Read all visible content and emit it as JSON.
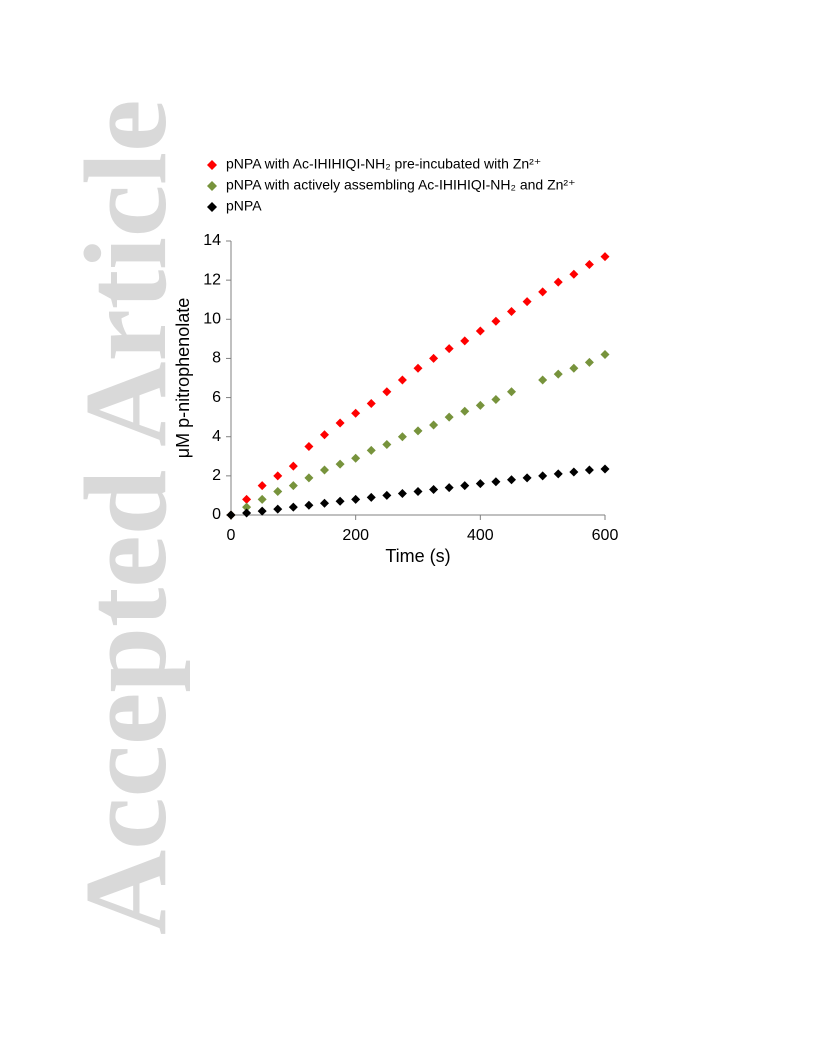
{
  "watermark": "Accepted Article",
  "chart_data": {
    "type": "scatter",
    "xlabel": "Time (s)",
    "ylabel": "μM p-nitrophenolate",
    "xlim": [
      0,
      600
    ],
    "xticks": [
      0,
      200,
      400,
      600
    ],
    "ylim": [
      0,
      14
    ],
    "yticks": [
      0,
      2,
      4,
      6,
      8,
      10,
      12,
      14
    ],
    "grid": false,
    "legend": "top",
    "x": [
      0,
      25,
      50,
      75,
      100,
      125,
      150,
      175,
      200,
      225,
      250,
      275,
      300,
      325,
      350,
      375,
      400,
      425,
      450,
      475,
      500,
      525,
      550,
      575,
      600
    ],
    "series": [
      {
        "name": "pNPA with Ac-IHIHIQI-NH₂ pre-incubated with Zn²⁺",
        "color": "#ff0000",
        "values": [
          0,
          0.8,
          1.5,
          2.0,
          2.5,
          3.5,
          4.1,
          4.7,
          5.2,
          5.7,
          6.3,
          6.9,
          7.5,
          8.0,
          8.5,
          8.9,
          9.4,
          9.9,
          10.4,
          10.9,
          11.4,
          11.9,
          12.3,
          12.8,
          13.2
        ]
      },
      {
        "name": "pNPA with actively assembling Ac-IHIHIQI-NH₂ and Zn²⁺",
        "color": "#77933c",
        "values": [
          0,
          0.4,
          0.8,
          1.2,
          1.5,
          1.9,
          2.3,
          2.6,
          2.9,
          3.3,
          3.6,
          4.0,
          4.3,
          4.6,
          5.0,
          5.3,
          5.6,
          5.9,
          6.3,
          null,
          6.9,
          7.2,
          7.5,
          7.8,
          8.2
        ]
      },
      {
        "name": "pNPA",
        "color": "#000000",
        "values": [
          0,
          0.1,
          0.2,
          0.3,
          0.4,
          0.5,
          0.6,
          0.7,
          0.8,
          0.9,
          1.0,
          1.1,
          1.2,
          1.3,
          1.4,
          1.5,
          1.6,
          1.7,
          1.8,
          1.9,
          2.0,
          2.1,
          2.2,
          2.3,
          2.35
        ]
      }
    ]
  }
}
